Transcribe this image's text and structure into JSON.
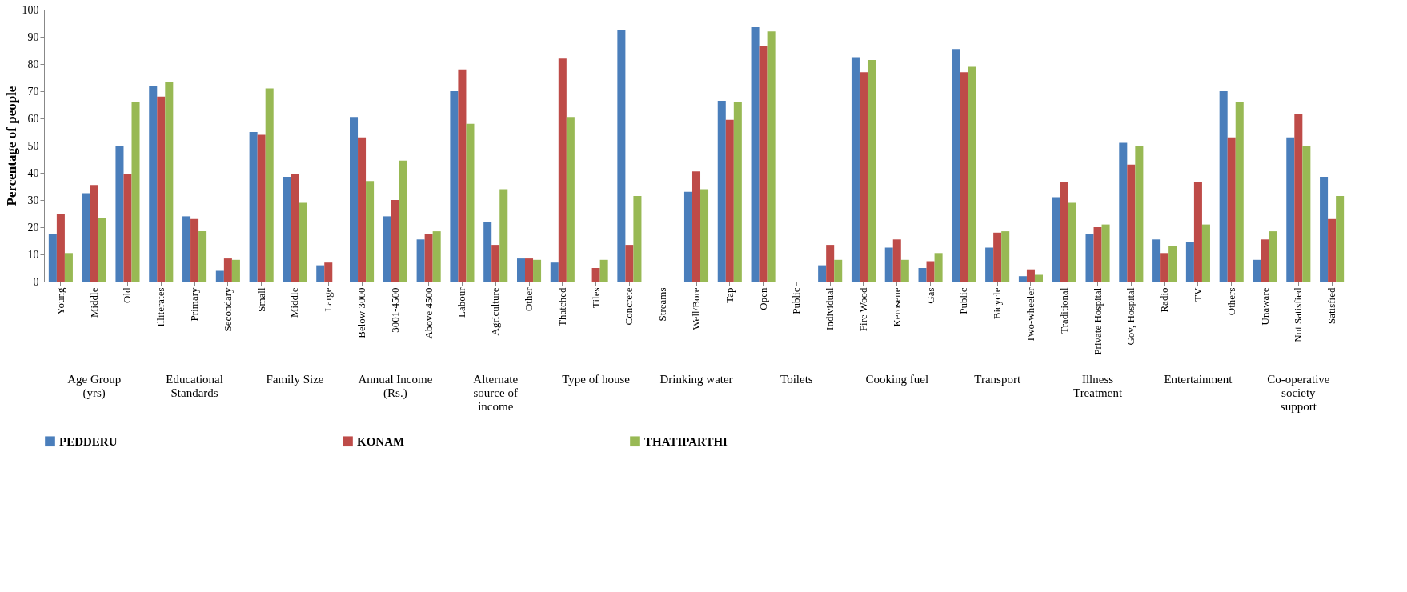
{
  "chart_data": {
    "type": "bar",
    "ylabel": "Percentage of people",
    "categories": [
      "Young",
      "Middle",
      "Old",
      "Illiterates",
      "Primary",
      "Secondary",
      "Small",
      "Middle",
      "Large",
      "Below 3000",
      "3001-4500",
      "Above 4500",
      "Labour",
      "Agriculture",
      "Other",
      "Thatched",
      "Tiles",
      "Concrete",
      "Streams",
      "Well/Bore",
      "Tap",
      "Open",
      "Public",
      "Individual",
      "Fire Wood",
      "Kerosene",
      "Gas",
      "Public",
      "Bicycle",
      "Two-wheeler",
      "Traditional",
      "Private Hospital",
      "Gov, Hospital",
      "Radio",
      "TV",
      "Others",
      "Unaware",
      "Not Satisfied",
      "Satisfied"
    ],
    "series": [
      {
        "name": "PEDDERU",
        "color": "#4a7ebb",
        "values": [
          17.5,
          32.5,
          50,
          72,
          24,
          4,
          55,
          38.5,
          6,
          60.5,
          24,
          15.5,
          70,
          22,
          8.5,
          7,
          0,
          92.5,
          0,
          33,
          66.5,
          93.5,
          0,
          6,
          82.5,
          12.5,
          5,
          85.5,
          12.5,
          2,
          31,
          17.5,
          51,
          15.5,
          14.5,
          70,
          8,
          53,
          38.5
        ]
      },
      {
        "name": "KONAM",
        "color": "#be4b48",
        "values": [
          25,
          35.5,
          39.5,
          68,
          23,
          8.5,
          54,
          39.5,
          7,
          53,
          30,
          17.5,
          78,
          13.5,
          8.5,
          82,
          5,
          13.5,
          0,
          40.5,
          59.5,
          86.5,
          0,
          13.5,
          77,
          15.5,
          7.5,
          77,
          18,
          4.5,
          36.5,
          20,
          43,
          10.5,
          36.5,
          53,
          15.5,
          61.5,
          23
        ]
      },
      {
        "name": "THATIPARTHI",
        "color": "#98b954",
        "values": [
          10.5,
          23.5,
          66,
          73.5,
          18.5,
          8,
          71,
          29,
          0,
          37,
          44.5,
          18.5,
          58,
          34,
          8,
          60.5,
          8,
          31.5,
          0,
          34,
          66,
          92,
          0,
          8,
          81.5,
          8,
          10.5,
          79,
          18.5,
          2.5,
          29,
          21,
          50,
          13,
          21,
          66,
          18.5,
          50,
          31.5
        ]
      }
    ],
    "ylim": [
      0,
      100
    ],
    "yticks": [
      0,
      10,
      20,
      30,
      40,
      50,
      60,
      70,
      80,
      90,
      100
    ],
    "grid": false,
    "legend": "bottom",
    "marker": "square",
    "annotations": [
      "Age Group (yrs)",
      "Educational Standards",
      "Family Size",
      "Annual Income (Rs.)",
      "Alternate source of income",
      "Type of house",
      "Drinking water",
      "Toilets",
      "Cooking fuel",
      "Transport",
      "Illness Treatment",
      "Entertainment",
      "Co-operative society support"
    ]
  }
}
